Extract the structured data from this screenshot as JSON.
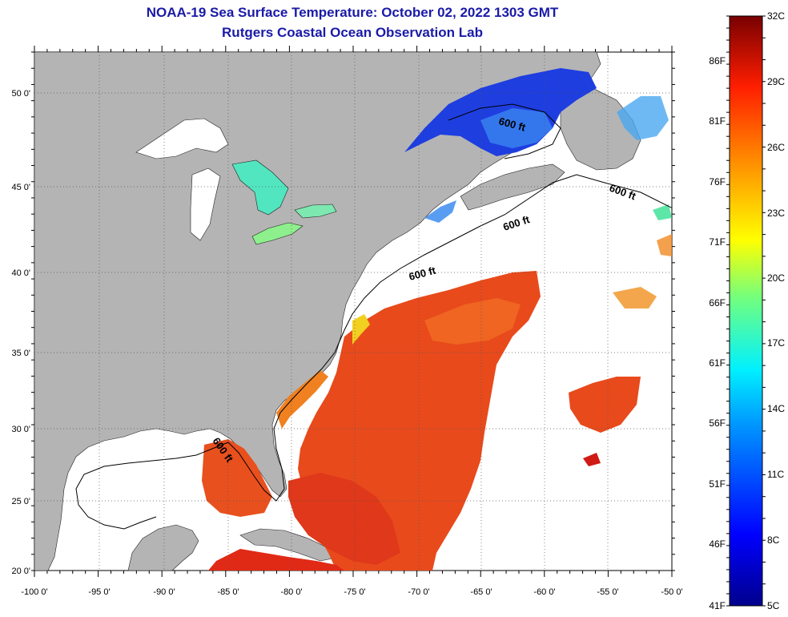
{
  "header": {
    "title": "NOAA-19 Sea Surface Temperature:  October 02, 2022 1303 GMT",
    "subtitle": "Rutgers Coastal Ocean Observation Lab"
  },
  "map": {
    "lon_labels": [
      "-100 0'",
      "-95 0'",
      "-90 0'",
      "-85 0'",
      "-80 0'",
      "-75 0'",
      "-70 0'",
      "-65 0'",
      "-60 0'",
      "-55 0'",
      "-50 0'"
    ],
    "lat_labels": [
      "50 0'",
      "45 0'",
      "40 0'",
      "35 0'",
      "30 0'",
      "25 0'",
      "20 0'"
    ],
    "contour_label": "600 ft",
    "colors": {
      "land": "#b4b4b4",
      "no_data": "#ffffff",
      "water_warm": "#e8501e",
      "water_cold": "#1e3ee0",
      "lakes": "#3ce0b4"
    }
  },
  "colorbar": {
    "celsius_labels": [
      "32C",
      "29C",
      "26C",
      "23C",
      "20C",
      "17C",
      "14C",
      "11C",
      "8C",
      "5C"
    ],
    "fahrenheit_labels": [
      "86F",
      "81F",
      "76F",
      "71F",
      "66F",
      "61F",
      "56F",
      "51F",
      "46F",
      "41F"
    ],
    "range_c": [
      5,
      32
    ],
    "range_f": [
      41,
      90
    ]
  }
}
